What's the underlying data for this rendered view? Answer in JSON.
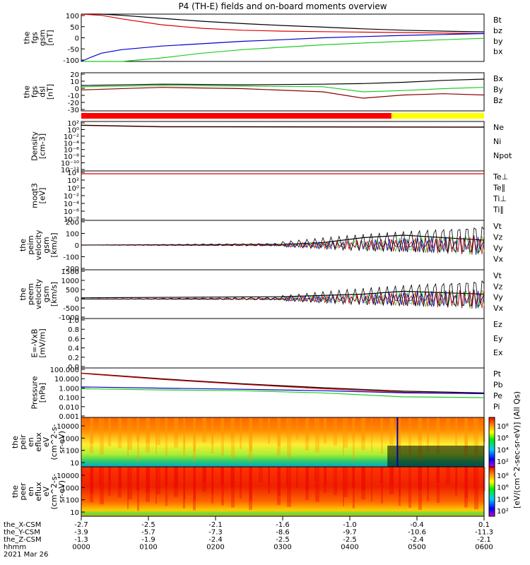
{
  "title": "P4 (TH-E) fields and on-board moments overview",
  "chart_data": [
    {
      "type": "line",
      "panel": "fgs_gsm",
      "ylabel_lines": [
        "the",
        "fgs",
        "gsm",
        "[nT]"
      ],
      "yticks": [
        "100",
        "50",
        "0",
        "-50",
        "-100"
      ],
      "ylim": [
        -100,
        100
      ],
      "legend": [
        {
          "label": "Bt",
          "color": "#000000"
        },
        {
          "label": "bz",
          "color": "#dd0000"
        },
        {
          "label": "by",
          "color": "#22cc22"
        },
        {
          "label": "bx",
          "color": "#0000cc"
        }
      ],
      "series": [
        {
          "name": "Bt",
          "color": "#000000",
          "x": [
            0,
            0.05,
            0.1,
            0.2,
            0.3,
            0.4,
            0.5,
            0.6,
            0.7,
            0.8,
            0.9,
            1
          ],
          "y": [
            120,
            105,
            95,
            82,
            70,
            60,
            52,
            45,
            38,
            32,
            28,
            25
          ]
        },
        {
          "name": "bz",
          "color": "#dd0000",
          "x": [
            0,
            0.05,
            0.1,
            0.2,
            0.3,
            0.4,
            0.5,
            0.6,
            0.7,
            0.8,
            0.9,
            1
          ],
          "y": [
            110,
            95,
            80,
            55,
            40,
            32,
            28,
            26,
            24,
            22,
            20,
            18
          ]
        },
        {
          "name": "by",
          "color": "#22cc22",
          "x": [
            0,
            0.1,
            0.2,
            0.3,
            0.4,
            0.5,
            0.6,
            0.7,
            0.8,
            0.9,
            1
          ],
          "y": [
            -140,
            -110,
            -85,
            -65,
            -50,
            -40,
            -30,
            -22,
            -15,
            -8,
            -2
          ]
        },
        {
          "name": "bx",
          "color": "#0000cc",
          "x": [
            0,
            0.02,
            0.05,
            0.1,
            0.2,
            0.3,
            0.4,
            0.5,
            0.6,
            0.7,
            0.8,
            0.9,
            1
          ],
          "y": [
            -100,
            -85,
            -65,
            -50,
            -35,
            -25,
            -15,
            -8,
            0,
            5,
            10,
            14,
            18
          ]
        }
      ]
    },
    {
      "type": "line",
      "panel": "fgs_dsl",
      "ylabel_lines": [
        "the",
        "fgs",
        "dsl",
        "[nT]"
      ],
      "yticks": [
        "20",
        "10",
        "0",
        "-10",
        "-20",
        "-30"
      ],
      "ylim": [
        -35,
        25
      ],
      "legend": [
        {
          "label": "Bx",
          "color": "#000000"
        },
        {
          "label": "By",
          "color": "#22cc22"
        },
        {
          "label": "Bz",
          "color": "#8b0000"
        }
      ],
      "series": [
        {
          "name": "Bx",
          "color": "#000000",
          "x": [
            0,
            0.2,
            0.4,
            0.6,
            0.7,
            0.8,
            0.9,
            1
          ],
          "y": [
            5,
            7,
            6,
            7,
            8,
            10,
            13,
            15
          ]
        },
        {
          "name": "By",
          "color": "#22cc22",
          "x": [
            0,
            0.2,
            0.4,
            0.6,
            0.7,
            0.8,
            0.9,
            1
          ],
          "y": [
            3,
            5,
            4,
            3,
            -5,
            -3,
            0,
            2
          ]
        },
        {
          "name": "Bz",
          "color": "#8b0000",
          "x": [
            0,
            0.2,
            0.4,
            0.6,
            0.7,
            0.8,
            0.9,
            1
          ],
          "y": [
            -2,
            2,
            0,
            -5,
            -15,
            -10,
            -8,
            -10
          ]
        }
      ]
    },
    {
      "type": "line",
      "panel": "density",
      "ylabel_lines": [
        "Density",
        "[cm-3]"
      ],
      "yticks": [
        "10²",
        "10⁰",
        "10⁻²",
        "10⁻⁴",
        "10⁻⁶",
        "10⁻⁸",
        "10⁻¹⁰",
        "10⁻¹²"
      ],
      "legend": [
        {
          "label": "Ne",
          "color": "#dd0000"
        },
        {
          "label": "Ni",
          "color": "#000000"
        },
        {
          "label": "Npot",
          "color": "#0000cc"
        }
      ],
      "series": [
        {
          "name": "Ne",
          "color": "#dd0000",
          "x": [
            0,
            0.2,
            1
          ],
          "y": [
            1.5,
            0.8,
            0.6
          ]
        },
        {
          "name": "Ni",
          "color": "#000000",
          "x": [
            0,
            0.2,
            1
          ],
          "y": [
            1.6,
            0.9,
            0.7
          ]
        }
      ]
    },
    {
      "type": "line",
      "panel": "moments_temp",
      "ylabel_lines": [
        "moqt3",
        "[eV]"
      ],
      "yticks": [
        "10⁴",
        "10²",
        "10⁰",
        "10⁻²",
        "10⁻⁴",
        "10⁻⁶",
        "10⁻⁸"
      ],
      "legend": [
        {
          "label": "Te⊥",
          "color": "#dd0000"
        },
        {
          "label": "Te∥",
          "color": "#000000"
        },
        {
          "label": "Ti⊥",
          "color": "#0000cc"
        },
        {
          "label": "Ti∥",
          "color": "#22cc22"
        }
      ],
      "series": [
        {
          "name": "T",
          "color": "#dd0000",
          "x": [
            0,
            1
          ],
          "y": [
            3.6,
            3.6
          ]
        }
      ]
    },
    {
      "type": "line",
      "panel": "peim_velocity",
      "ylabel_lines": [
        "the",
        "peim",
        "velocity",
        "gsm",
        "[km/s]"
      ],
      "yticks": [
        "200",
        "100",
        "0",
        "-100",
        "-200"
      ],
      "ylim": [
        -200,
        200
      ],
      "legend": [
        {
          "label": "Vt",
          "color": "#000000"
        },
        {
          "label": "Vz",
          "color": "#dd0000"
        },
        {
          "label": "Vy",
          "color": "#22cc22"
        },
        {
          "label": "Vx",
          "color": "#0000cc"
        }
      ],
      "series": [
        {
          "name": "Vt",
          "color": "#000000",
          "x": [
            0,
            0.5,
            0.6,
            0.7,
            0.8,
            0.9,
            1
          ],
          "y": [
            0,
            5,
            20,
            60,
            80,
            60,
            40
          ]
        }
      ]
    },
    {
      "type": "line",
      "panel": "peem_velocity",
      "ylabel_lines": [
        "the",
        "peem",
        "velocity",
        "gsm",
        "[km/s]"
      ],
      "yticks": [
        "1500",
        "1000",
        "500",
        "0",
        "-500",
        "-1000"
      ],
      "ylim": [
        -1000,
        1500
      ],
      "legend": [
        {
          "label": "Vt",
          "color": "#000000"
        },
        {
          "label": "Vz",
          "color": "#dd0000"
        },
        {
          "label": "Vy",
          "color": "#22cc22"
        },
        {
          "label": "Vx",
          "color": "#0000cc"
        }
      ],
      "series": [
        {
          "name": "Vt",
          "color": "#000000",
          "x": [
            0,
            0.5,
            0.7,
            0.8,
            1
          ],
          "y": [
            60,
            120,
            250,
            400,
            250
          ]
        }
      ]
    },
    {
      "type": "line",
      "panel": "e_field",
      "ylabel_lines": [
        "E=-VxB",
        "[mV/m]"
      ],
      "yticks": [
        "1.0",
        "0.8",
        "0.6",
        "0.4",
        "0.2",
        "0.0"
      ],
      "ylim": [
        0,
        1
      ],
      "legend": [
        {
          "label": "Ez",
          "color": "#dd0000"
        },
        {
          "label": "Ey",
          "color": "#22cc22"
        },
        {
          "label": "Ex",
          "color": "#0000cc"
        }
      ],
      "series": []
    },
    {
      "type": "line",
      "panel": "pressure",
      "ylabel_lines": [
        "Pressure",
        "[nPa]"
      ],
      "yticks": [
        "100.000",
        "10.000",
        "1.000",
        "0.100",
        "0.010",
        "0.001"
      ],
      "legend": [
        {
          "label": "Pt",
          "color": "#000000"
        },
        {
          "label": "Pb",
          "color": "#dd0000"
        },
        {
          "label": "Pe",
          "color": "#22cc22"
        },
        {
          "label": "Pi",
          "color": "#0000cc"
        }
      ],
      "series": [
        {
          "name": "Pt",
          "color": "#000000",
          "x": [
            0,
            0.2,
            0.4,
            0.6,
            0.8,
            1
          ],
          "y": [
            30,
            8,
            2.5,
            1.0,
            0.45,
            0.3
          ]
        },
        {
          "name": "Pb",
          "color": "#dd0000",
          "x": [
            0,
            0.2,
            0.4,
            0.6,
            0.8,
            1
          ],
          "y": [
            28,
            7,
            2.2,
            0.8,
            0.35,
            0.25
          ]
        },
        {
          "name": "Pe",
          "color": "#22cc22",
          "x": [
            0,
            0.2,
            0.4,
            0.6,
            0.8,
            1
          ],
          "y": [
            0.8,
            0.6,
            0.5,
            0.3,
            0.12,
            0.1
          ]
        },
        {
          "name": "Pi",
          "color": "#0000cc",
          "x": [
            0,
            0.2,
            0.4,
            0.6,
            0.8,
            1
          ],
          "y": [
            1.2,
            0.9,
            0.7,
            0.5,
            0.3,
            0.25
          ]
        }
      ]
    },
    {
      "type": "heatmap",
      "panel": "peir_eflux",
      "ylabel_lines": [
        "the",
        "peir",
        "en",
        "eflux",
        "eV",
        "(cm^2-s-",
        "sr-eV)"
      ],
      "yticks": [
        "10000",
        "1000",
        "100",
        "10"
      ],
      "colorbar_ticks": [
        "10⁸",
        "10⁶",
        "10⁴",
        "10²"
      ]
    },
    {
      "type": "heatmap",
      "panel": "peer_eflux",
      "ylabel_lines": [
        "the",
        "peer",
        "en",
        "eflux",
        "eV",
        "(cm^2-s-",
        "sr-eV)"
      ],
      "yticks": [
        "10000",
        "1000",
        "100",
        "10"
      ],
      "colorbar_ticks": [
        "10⁸",
        "10⁶",
        "10⁴",
        "10²"
      ]
    }
  ],
  "colorbar_title": "[eV/(cm^2-sec-sr-eV)] (All Qs)",
  "ephemeris": {
    "rows": [
      {
        "label": "the_X-CSM",
        "values": [
          "-2.7",
          "-2.5",
          "-2.1",
          "-1.6",
          "-1.0",
          "-0.4",
          "0.1"
        ]
      },
      {
        "label": "the_Y-CSM",
        "values": [
          "-3.9",
          "-5.7",
          "-7.3",
          "-8.6",
          "-9.7",
          "-10.6",
          "-11.3"
        ]
      },
      {
        "label": "the_Z-CSM",
        "values": [
          "-1.3",
          "-1.9",
          "-2.4",
          "-2.5",
          "-2.5",
          "-2.4",
          "-2.1"
        ]
      },
      {
        "label": "hhmm",
        "values": [
          "0000",
          "0100",
          "0200",
          "0300",
          "0400",
          "0500",
          "0600"
        ]
      }
    ],
    "date": "2021 Mar 26"
  },
  "colors": {
    "red": "#dd0000",
    "green": "#22cc22",
    "blue": "#0000cc",
    "mode_red": "#ff0000",
    "mode_yellow": "#ffff00"
  }
}
